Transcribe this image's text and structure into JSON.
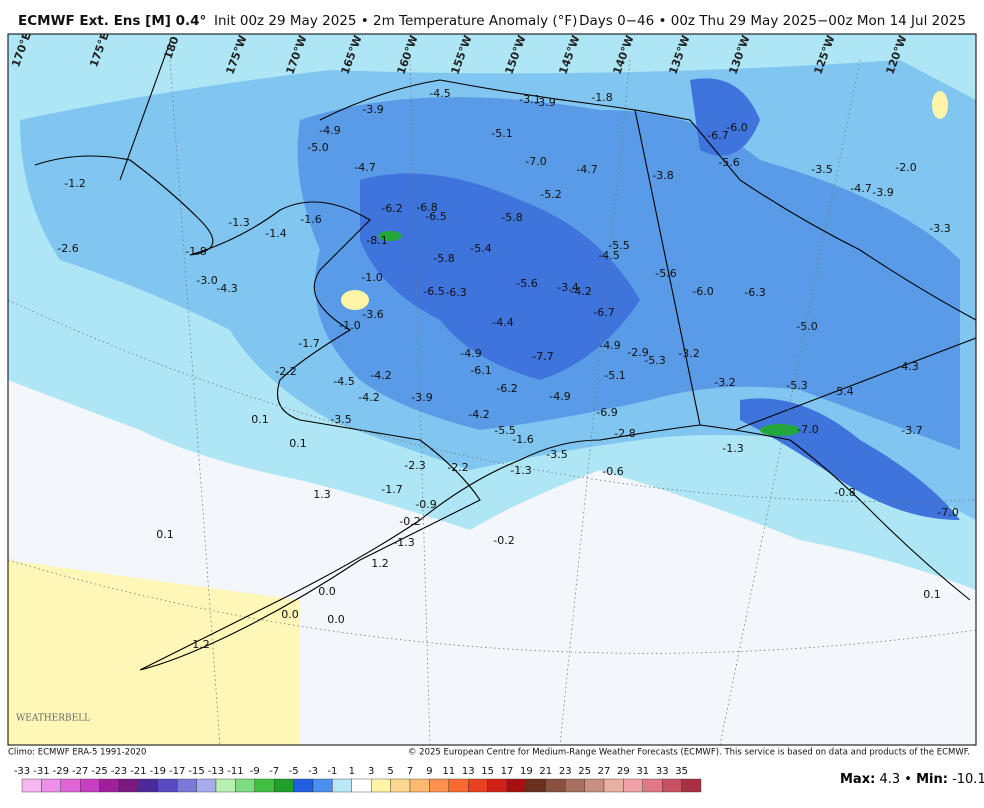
{
  "header": {
    "model": "ECMWF Ext. Ens [M] 0.4°",
    "description": "Init 00z 29 May 2025 • 2m Temperature Anomaly (°F)",
    "valid": "Days 0−46 • 00z Thu 29 May 2025−00z Mon 14 Jul 2025"
  },
  "map": {
    "longitude_labels": [
      "170°E",
      "175°E",
      "180",
      "175°W",
      "170°W",
      "165°W",
      "160°W",
      "155°W",
      "150°W",
      "145°W",
      "140°W",
      "135°W",
      "130°W",
      "125°W",
      "120°W"
    ],
    "value_labels": [
      "-4.5",
      "-3.1",
      "-3.9",
      "-1.8",
      "-3.9",
      "-4.9",
      "-5.1",
      "-5.0",
      "-7.0",
      "-4.7",
      "-4.7",
      "-5.2",
      "-3.8",
      "-6.2",
      "-6.8",
      "-6.5",
      "-5.8",
      "-1.6",
      "-1.4",
      "-8.1",
      "-5.4",
      "-5.5",
      "-4.5",
      "-5.8",
      "-1.0",
      "-5.6",
      "-3.4",
      "-4.2",
      "-5.6",
      "-6.0",
      "-6.3",
      "-6.5",
      "-6.3",
      "-3.6",
      "-1.0",
      "-6.7",
      "-4.4",
      "-5.0",
      "-1.7",
      "-4.9",
      "-7.7",
      "-4.9",
      "-2.9",
      "-5.3",
      "-3.2",
      "-6.1",
      "-5.1",
      "-2.2",
      "-4.5",
      "-4.2",
      "-3.2",
      "-5.3",
      "-5.4",
      "-4.3",
      "-6.2",
      "-4.2",
      "-3.9",
      "-4.9",
      "-4.2",
      "-6.9",
      "-3.5",
      "-5.5",
      "-1.6",
      "-2.8",
      "-7.0",
      "-3.7",
      "-1.3",
      "-3.5",
      "-2.3",
      "-2.2",
      "-1.3",
      "-0.6",
      "-1.7",
      "-0.9",
      "-0.2",
      "-1.3",
      "-0.2",
      "1.2",
      "0.0",
      "0.1",
      "-0.8",
      "-7.0",
      "0.1",
      "0.1",
      "-6.7",
      "-6.0",
      "-5.6",
      "-3.5",
      "-2.0",
      "-4.7",
      "-3.9",
      "-3.3",
      "-3.0",
      "-4.3",
      "-2.6",
      "-1.8",
      "-1.2",
      "-1.3",
      "1.3",
      "0.0",
      "0.0",
      "0.1",
      "1.2"
    ],
    "logo": "WEATHERBELL"
  },
  "footer": {
    "climo": "Climo: ECMWF ERA-5 1991-2020",
    "copyright": "© 2025 European Centre for Medium-Range Weather Forecasts (ECMWF). This service is based on data and products of the ECMWF."
  },
  "colorbar": {
    "ticks": [
      -33,
      -31,
      -29,
      -27,
      -25,
      -23,
      -21,
      -19,
      -17,
      -15,
      -13,
      -11,
      -9,
      -7,
      -5,
      -3,
      -1,
      1,
      3,
      5,
      7,
      9,
      11,
      13,
      15,
      17,
      19,
      21,
      23,
      25,
      27,
      29,
      31,
      33,
      35
    ],
    "colors": [
      "#f5b7f0",
      "#ee8fe8",
      "#e066d8",
      "#c83fc0",
      "#a0209c",
      "#7a1a7f",
      "#4a2a9a",
      "#5a4ac0",
      "#7a78d8",
      "#a8acec",
      "#b8f0b0",
      "#80dc80",
      "#40c040",
      "#1ea02a",
      "#2060e0",
      "#4a8ef0",
      "#b8e8f8",
      "#ffffff",
      "#fff4a8",
      "#ffd890",
      "#ffb870",
      "#ff9050",
      "#f86a30",
      "#e84020",
      "#d02018",
      "#a81010",
      "#6a3020",
      "#8a5040",
      "#a87060",
      "#c89080",
      "#e8b0a0",
      "#f0a0a8",
      "#e07888",
      "#c85060",
      "#a83040"
    ]
  },
  "stats": {
    "max_label": "Max:",
    "max": 4.3,
    "separator": "•",
    "min_label": "Min:",
    "min": -10.1
  }
}
